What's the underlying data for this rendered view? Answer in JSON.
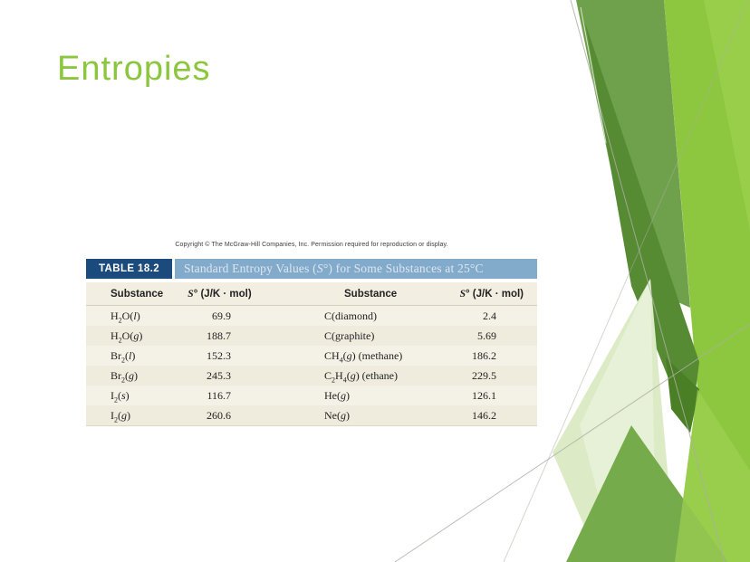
{
  "slide": {
    "title": "Entropies"
  },
  "figure": {
    "copyright": "Copyright © The McGraw-Hill Companies, Inc. Permission required for reproduction or display.",
    "table_label": "TABLE 18.2",
    "table_title": "Standard Entropy Values (*S*°) for Some Substances at 25°C",
    "columns": [
      "Substance",
      "*S*° (J/K · mol)",
      "Substance",
      "*S*° (J/K · mol)"
    ],
    "rows": [
      [
        "H_2_O(*l*)",
        "69.9",
        "C(diamond)",
        "2.4"
      ],
      [
        "H_2_O(*g*)",
        "188.7",
        "C(graphite)",
        "5.69"
      ],
      [
        "Br_2_(*l*)",
        "152.3",
        "CH_4_(*g*) (methane)",
        "186.2"
      ],
      [
        "Br_2_(*g*)",
        "245.3",
        "C_2_H_4_(*g*) (ethane)",
        "229.5"
      ],
      [
        "I_2_(*s*)",
        "116.7",
        "He(*g*)",
        "126.1"
      ],
      [
        "I_2_(*g*)",
        "260.6",
        "Ne(*g*)",
        "146.2"
      ]
    ]
  },
  "theme": {
    "title_green": "#8CC63F",
    "green_olive": "#6FA04C",
    "green_bright": "#8DC63F",
    "green_bright_light": "#99CE4B",
    "green_dark": "#568B33",
    "green_darkest": "#4A7F26",
    "green_pale": "#DCEBC6",
    "green_pale_light": "#E9F3DC",
    "green_mid": "#75AB4A",
    "green_overlay": "#9ED052",
    "line_gray": "#ABAEA3",
    "white_line": "#FFFFFF",
    "navy": "#1B4B7C",
    "steel_blue": "#82AACA",
    "bar_text": "#DEE7F1",
    "cream": "#F2EFE2",
    "ink": "#1F1F1F"
  }
}
